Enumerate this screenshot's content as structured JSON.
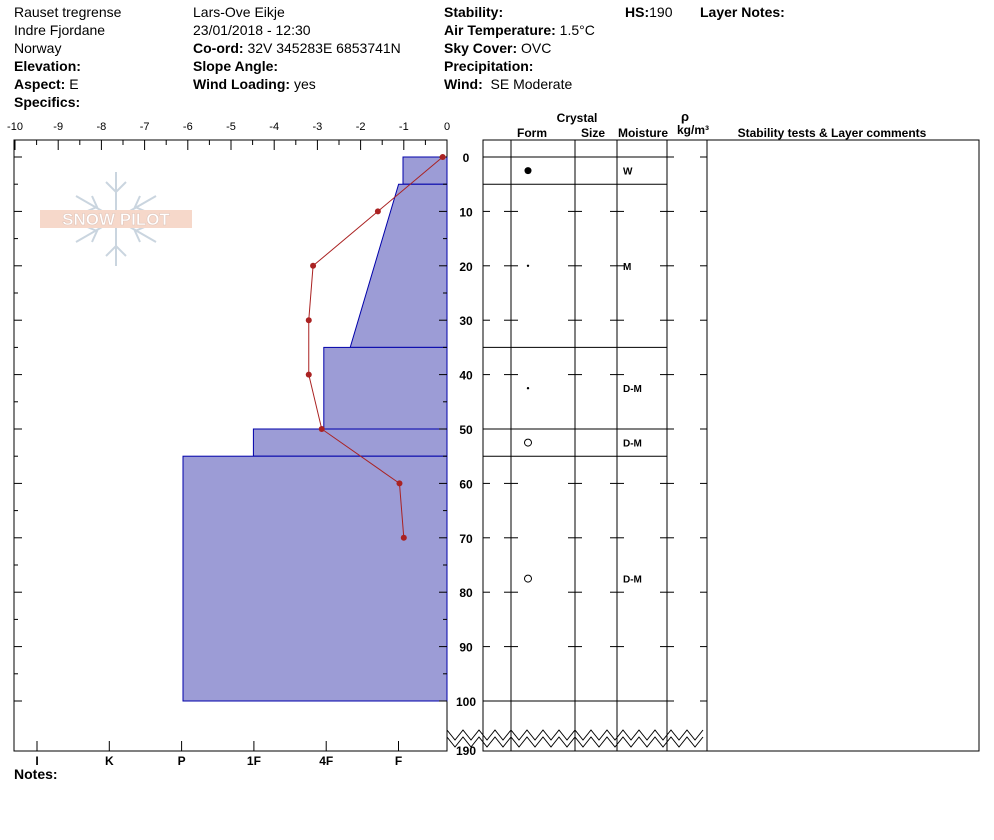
{
  "header": {
    "location": "Rauset tregrense",
    "region": "Indre Fjordane",
    "country": "Norway",
    "elevation_label": "Elevation:",
    "elevation_value": "",
    "aspect_label": "Aspect:",
    "aspect_value": "E",
    "specifics_label": "Specifics:",
    "specifics_value": "",
    "observer": "Lars-Ove Eikje",
    "datetime": "23/01/2018 - 12:30",
    "coord_label": "Co-ord:",
    "coord_value": "32V 345283E 6853741N",
    "slope_label": "Slope Angle:",
    "slope_value": "",
    "wind_loading_label": "Wind Loading:",
    "wind_loading_value": "yes",
    "stability_label": "Stability:",
    "stability_value": "",
    "air_temp_label": "Air Temperature:",
    "air_temp_value": "1.5°C",
    "sky_label": "Sky Cover:",
    "sky_value": "OVC",
    "precip_label": "Precipitation:",
    "precip_value": "",
    "wind_label": "Wind:",
    "wind_value": "SE Moderate",
    "hs_label": "HS:",
    "hs_value": "190",
    "layer_notes_label": "Layer Notes:",
    "notes_label": "Notes:"
  },
  "logo_text": "SNOW PILOT",
  "colors": {
    "hardness_fill": "#9c9cd6",
    "hardness_stroke": "#0000aa",
    "temp_line": "#aa2222"
  },
  "chart_data": {
    "type": "line",
    "temp_axis": {
      "ticks": [
        -10,
        -9,
        -8,
        -7,
        -6,
        -5,
        -4,
        -3,
        -2,
        -1,
        0
      ],
      "range": [
        -10,
        0
      ]
    },
    "depth_axis": {
      "ticks": [
        0,
        10,
        20,
        30,
        40,
        50,
        60,
        70,
        80,
        90,
        100
      ],
      "range": [
        0,
        100
      ],
      "break_label": "190"
    },
    "hardness_axis": {
      "ticks": [
        "I",
        "K",
        "P",
        "1F",
        "4F",
        "F"
      ]
    },
    "temperature_profile": {
      "depth": [
        0,
        10,
        20,
        30,
        40,
        50,
        60,
        70
      ],
      "temp": [
        -0.1,
        -1.6,
        -3.1,
        -3.2,
        -3.2,
        -2.9,
        -1.1,
        -1.0
      ]
    },
    "hardness_profile": [
      {
        "top": 0,
        "bottom": 5,
        "hardness": 1.0
      },
      {
        "top": 5,
        "bottom": 35,
        "polygon": [
          [
            5,
            1.1
          ],
          [
            35,
            2.2
          ]
        ]
      },
      {
        "top": 35,
        "bottom": 50,
        "hardness": 2.8
      },
      {
        "top": 50,
        "bottom": 55,
        "hardness": 4.4
      },
      {
        "top": 55,
        "bottom": 100,
        "hardness": 6.0
      }
    ],
    "layer_table": {
      "group_header": "Crystal",
      "columns": [
        "Form",
        "Size",
        "Moisture",
        "ρ",
        "kg/m³",
        "Stability tests & Layer comments"
      ],
      "boundaries": [
        0,
        5,
        35,
        50,
        55,
        100
      ],
      "layers": [
        {
          "form": "filled-circle",
          "moisture": "W"
        },
        {
          "form": "dot",
          "moisture": "M"
        },
        {
          "form": "dot",
          "moisture": "D-M"
        },
        {
          "form": "open-circle",
          "moisture": "D-M"
        },
        {
          "form": "open-circle",
          "moisture": "D-M"
        }
      ]
    }
  }
}
